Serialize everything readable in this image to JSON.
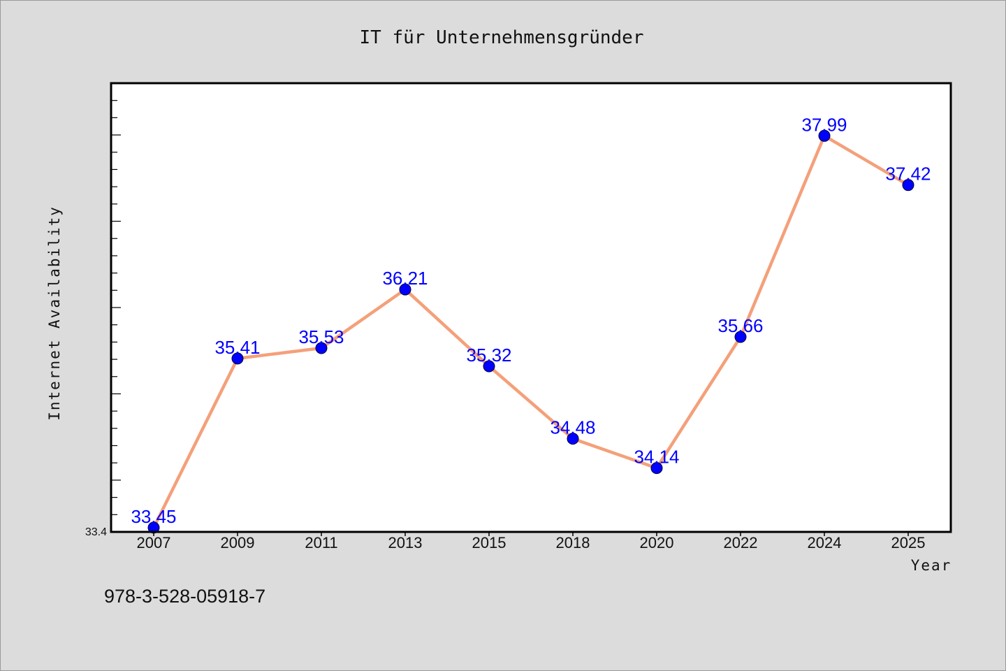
{
  "chart_data": {
    "type": "line",
    "title": "IT für Unternehmensgründer",
    "xlabel": "Year",
    "ylabel": "Internet Availability",
    "categories": [
      "2007",
      "2009",
      "2011",
      "2013",
      "2015",
      "2018",
      "2020",
      "2022",
      "2024",
      "2025"
    ],
    "series": [
      {
        "values": [
          33.45,
          35.41,
          35.53,
          36.21,
          35.32,
          34.48,
          34.14,
          35.66,
          37.99,
          37.42
        ],
        "data_labels": [
          "33.45",
          "35.41",
          "35.53",
          "36.21",
          "35.32",
          "34.48",
          "34.14",
          "35.66",
          "37.99",
          "37.42"
        ]
      }
    ],
    "yticks": [
      "33.4"
    ],
    "ylim": [
      33.4,
      38.6
    ],
    "grid": false,
    "colors": {
      "line": "#f4a07a",
      "marker": "#0000ff",
      "label": "#0000ff",
      "plot_bg": "#ffffff",
      "page_bg": "#dcdcdc"
    }
  },
  "footnote": "978-3-528-05918-7"
}
